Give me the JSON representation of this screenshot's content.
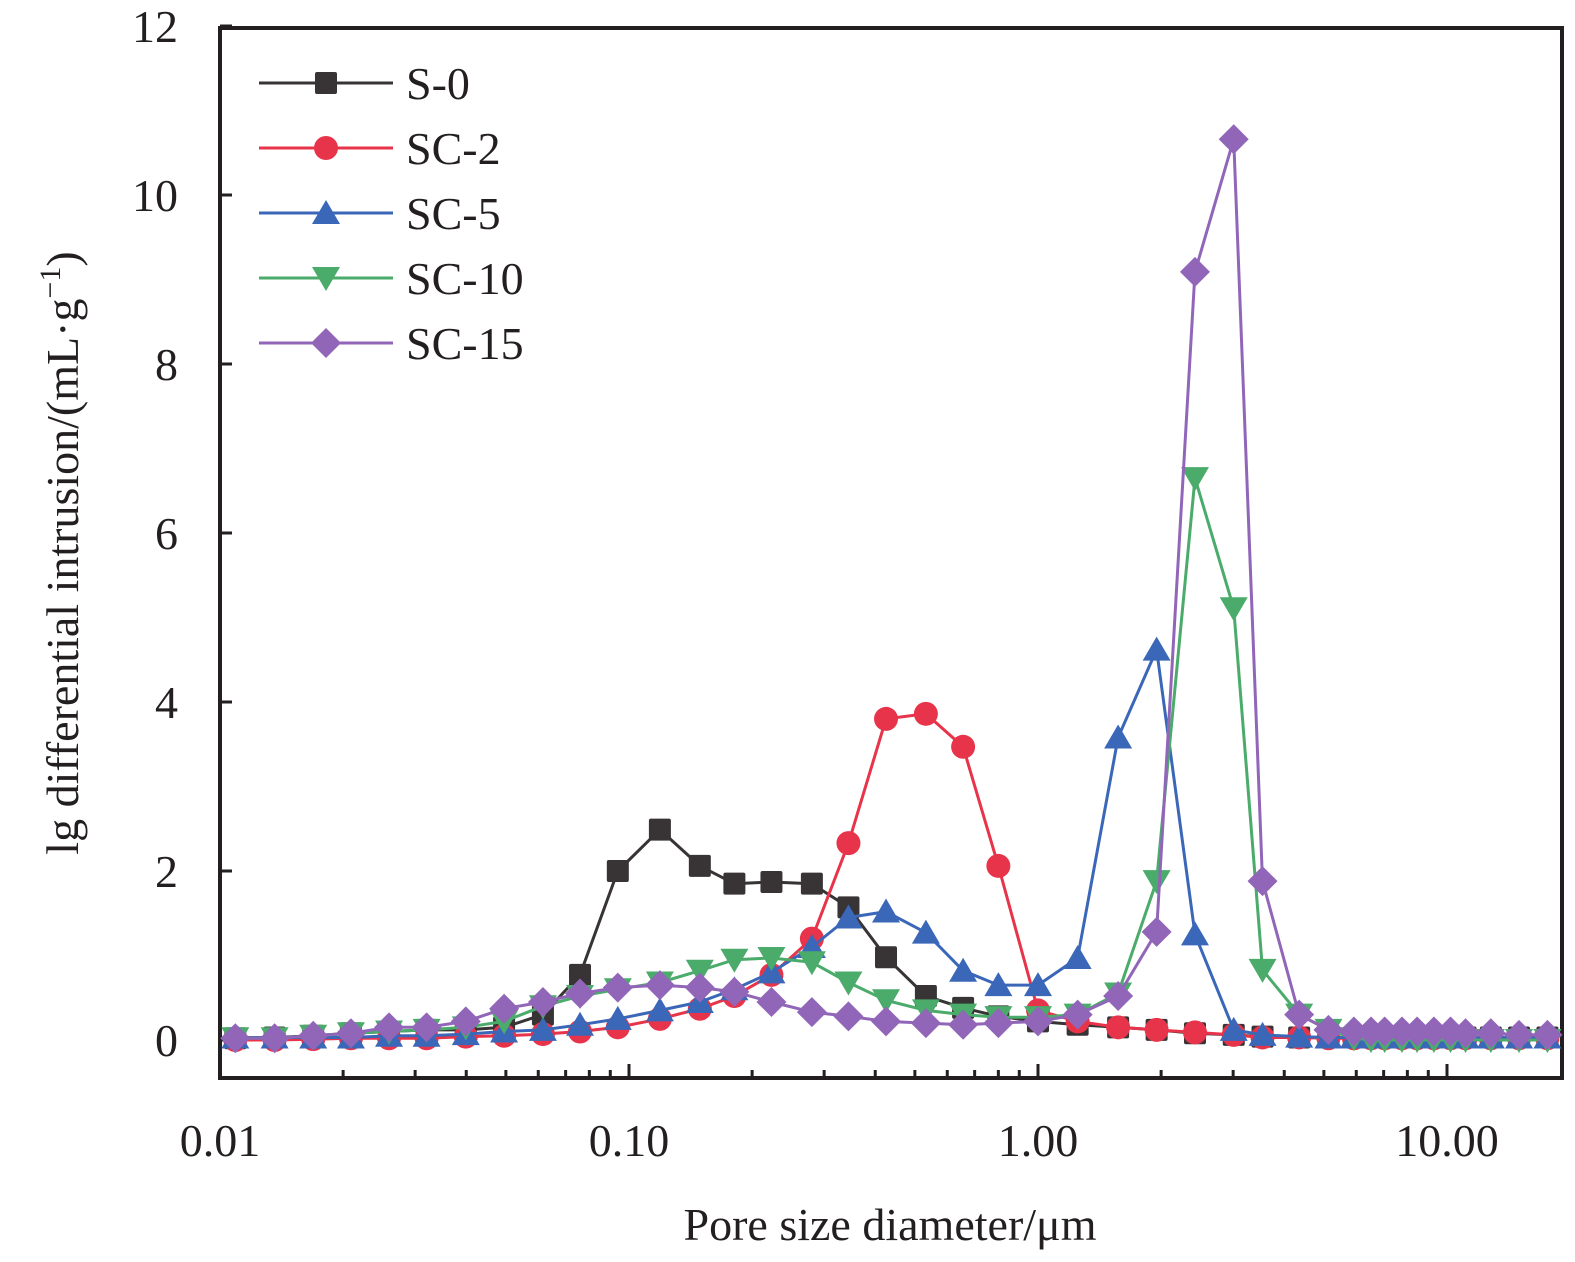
{
  "chart_data": {
    "type": "line",
    "title": "",
    "xlabel": "Pore size diameter/μm",
    "ylabel": "lg differential intrusion/(mL·g⁻¹)",
    "ylabel_main": "lg differential intrusion/(mL·g",
    "ylabel_sup": "−1",
    "ylabel_close": ")",
    "xscale": "log",
    "xlim": [
      0.01,
      19.1
    ],
    "ylim": [
      0,
      12
    ],
    "grid": false,
    "legend_position": "top-left",
    "x_ticks": [
      {
        "value": 0.01,
        "label": "0.01"
      },
      {
        "value": 0.1,
        "label": "0.10"
      },
      {
        "value": 1,
        "label": "1.00"
      },
      {
        "value": 10,
        "label": "10.00"
      }
    ],
    "y_ticks": [
      {
        "value": 0,
        "label": "0"
      },
      {
        "value": 2,
        "label": "2"
      },
      {
        "value": 4,
        "label": "4"
      },
      {
        "value": 6,
        "label": "6"
      },
      {
        "value": 8,
        "label": "8"
      },
      {
        "value": 10,
        "label": "10"
      },
      {
        "value": 12,
        "label": "12"
      }
    ],
    "x": [
      0.0109,
      0.0136,
      0.0169,
      0.0209,
      0.0259,
      0.032,
      0.0399,
      0.0495,
      0.0616,
      0.0759,
      0.0939,
      0.119,
      0.149,
      0.181,
      0.223,
      0.28,
      0.344,
      0.425,
      0.532,
      0.656,
      0.8,
      1.0,
      1.25,
      1.57,
      1.95,
      2.42,
      3.01,
      3.54,
      4.35,
      5.13,
      5.92,
      6.52,
      7.04,
      7.76,
      8.45,
      9.29,
      10.2,
      11.1,
      12.8,
      15.0,
      17.6
    ],
    "series": [
      {
        "name": "S-0",
        "color": "#383435",
        "marker": "square",
        "values": [
          0.02,
          0.03,
          0.05,
          0.08,
          0.1,
          0.12,
          0.12,
          0.15,
          0.3,
          0.77,
          2.0,
          2.49,
          2.06,
          1.85,
          1.87,
          1.85,
          1.57,
          0.98,
          0.52,
          0.38,
          0.28,
          0.22,
          0.18,
          0.15,
          0.12,
          0.08,
          0.06,
          0.04,
          0.03,
          0.03,
          0.03,
          0.03,
          0.03,
          0.03,
          0.03,
          0.03,
          0.03,
          0.03,
          0.03,
          0.03,
          0.03
        ]
      },
      {
        "name": "SC-2",
        "color": "#e8344a",
        "marker": "circle",
        "values": [
          0.0,
          0.0,
          0.01,
          0.02,
          0.02,
          0.02,
          0.04,
          0.05,
          0.07,
          0.1,
          0.15,
          0.25,
          0.37,
          0.52,
          0.77,
          1.2,
          2.33,
          3.8,
          3.86,
          3.47,
          2.06,
          0.35,
          0.22,
          0.15,
          0.12,
          0.09,
          0.06,
          0.03,
          0.03,
          0.02,
          0.02,
          0.02,
          0.02,
          0.02,
          0.02,
          0.02,
          0.02,
          0.02,
          0.02,
          0.02,
          0.02
        ]
      },
      {
        "name": "SC-5",
        "color": "#3b67b8",
        "marker": "triangle-up",
        "values": [
          0.03,
          0.03,
          0.03,
          0.03,
          0.05,
          0.05,
          0.07,
          0.1,
          0.12,
          0.18,
          0.25,
          0.35,
          0.45,
          0.6,
          0.8,
          1.1,
          1.45,
          1.52,
          1.27,
          0.82,
          0.65,
          0.65,
          0.97,
          3.58,
          4.62,
          1.25,
          0.12,
          0.06,
          0.04,
          0.03,
          0.03,
          0.03,
          0.03,
          0.03,
          0.03,
          0.03,
          0.03,
          0.03,
          0.03,
          0.03,
          0.03
        ]
      },
      {
        "name": "SC-10",
        "color": "#4aab6a",
        "marker": "triangle-down",
        "values": [
          0.02,
          0.02,
          0.05,
          0.08,
          0.1,
          0.12,
          0.15,
          0.22,
          0.4,
          0.52,
          0.6,
          0.68,
          0.82,
          0.95,
          0.97,
          0.92,
          0.68,
          0.47,
          0.35,
          0.3,
          0.27,
          0.27,
          0.3,
          0.55,
          1.88,
          6.65,
          5.11,
          0.83,
          0.3,
          0.12,
          0.02,
          0.0,
          0.0,
          0.0,
          0.0,
          0.0,
          0.0,
          0.0,
          0.0,
          0.0,
          0.0
        ]
      },
      {
        "name": "SC-15",
        "color": "#9166b8",
        "marker": "diamond",
        "values": [
          0.02,
          0.02,
          0.05,
          0.08,
          0.15,
          0.15,
          0.22,
          0.37,
          0.45,
          0.55,
          0.62,
          0.65,
          0.62,
          0.57,
          0.45,
          0.33,
          0.28,
          0.22,
          0.2,
          0.18,
          0.2,
          0.22,
          0.3,
          0.52,
          1.28,
          9.09,
          10.66,
          1.88,
          0.3,
          0.12,
          0.1,
          0.1,
          0.1,
          0.1,
          0.1,
          0.1,
          0.1,
          0.08,
          0.08,
          0.06,
          0.06
        ]
      }
    ]
  }
}
